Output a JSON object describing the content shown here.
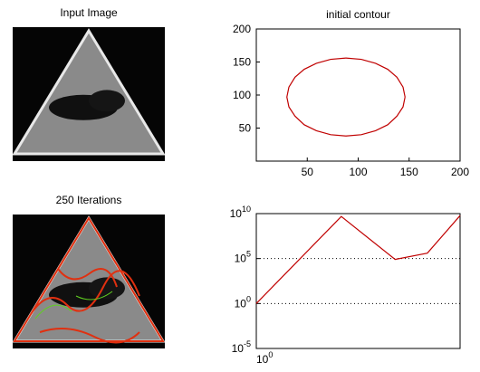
{
  "chart_data": [
    {
      "type": "image",
      "title": "Input Image"
    },
    {
      "type": "line",
      "title": "initial contour",
      "x": [
        146,
        144,
        138,
        129,
        117,
        103,
        88,
        73,
        59,
        47,
        38,
        32,
        30,
        32,
        38,
        47,
        59,
        73,
        88,
        103,
        117,
        129,
        138,
        144,
        146
      ],
      "series": [
        {
          "color": "#c00000",
          "values": [
            97,
            112,
            127,
            139,
            148,
            154,
            156,
            154,
            148,
            139,
            127,
            112,
            97,
            82,
            68,
            55,
            46,
            40,
            38,
            40,
            46,
            55,
            68,
            82,
            97
          ]
        }
      ],
      "xlim": [
        0,
        200
      ],
      "ylim": [
        0,
        200
      ],
      "xticks": [
        50,
        100,
        150,
        200
      ],
      "yticks": [
        50,
        100,
        150,
        200
      ],
      "grid": false
    },
    {
      "type": "image",
      "title": "250 Iterations"
    },
    {
      "type": "line",
      "x": [
        1,
        10,
        43,
        103,
        250
      ],
      "series": [
        {
          "color": "#c00000",
          "values": [
            1,
            4800000000,
            80000,
            400000,
            6000000000
          ]
        }
      ],
      "xlim": [
        1,
        250
      ],
      "ylim": [
        1e-05,
        10000000000
      ],
      "log_x": true,
      "log_y": true,
      "xticks": [
        {
          "value": 1,
          "label": "10^0"
        }
      ],
      "yticks": [
        {
          "value": 1e-05,
          "label": "10^-5"
        },
        {
          "value": 1,
          "label": "10^0"
        },
        {
          "value": 100000,
          "label": "10^5"
        },
        {
          "value": 10000000000,
          "label": "10^10"
        }
      ],
      "grid": true
    }
  ]
}
